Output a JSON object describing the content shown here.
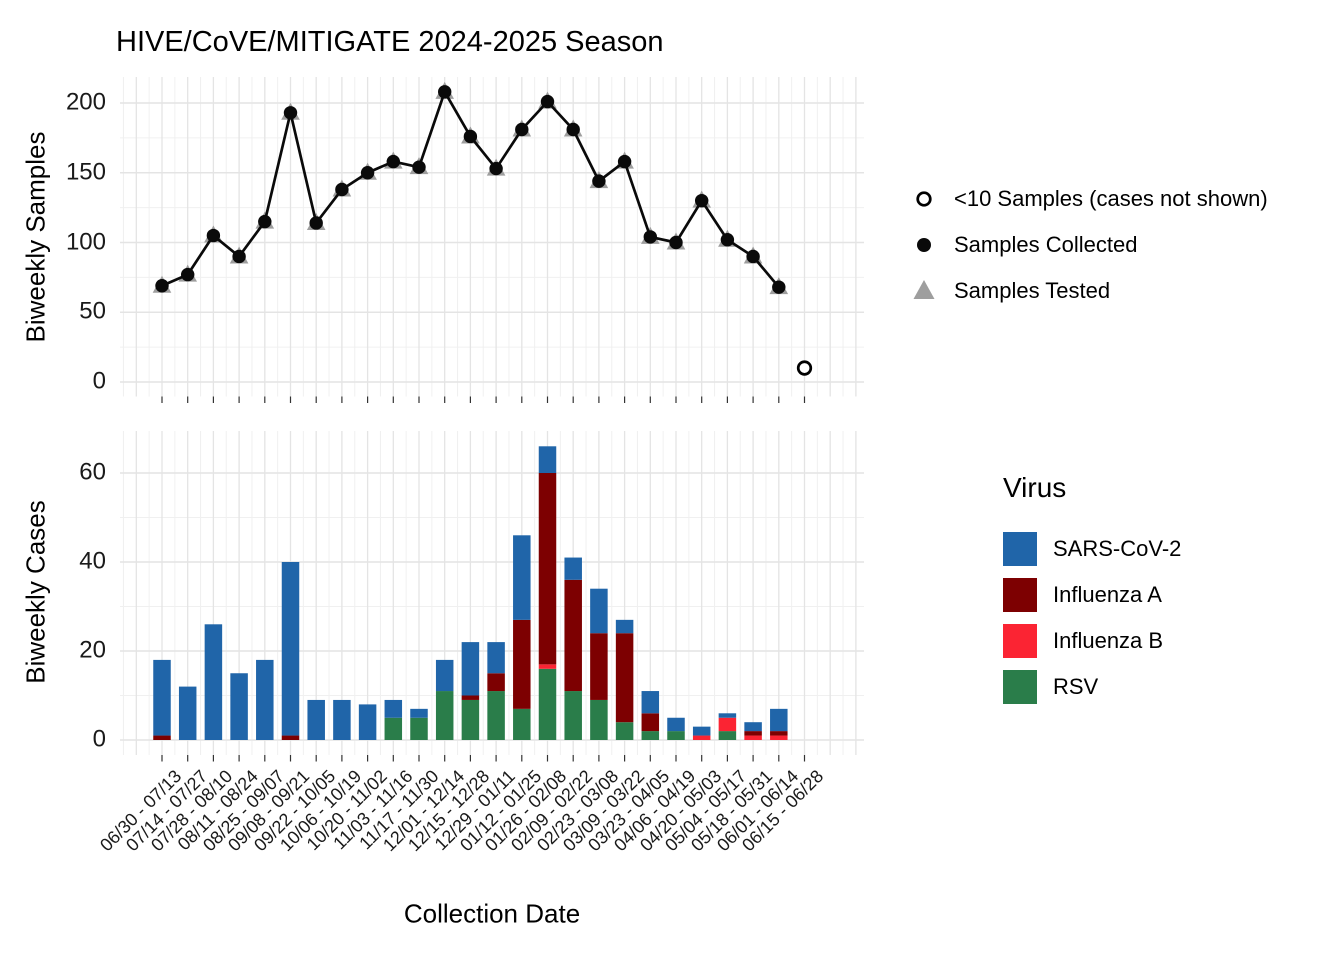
{
  "title": "HIVE/CoVE/MITIGATE 2024-2025 Season",
  "x_axis_label": "Collection Date",
  "top_chart": {
    "y_axis_label": "Biweekly Samples",
    "y_ticks": [
      0,
      50,
      100,
      150,
      200
    ],
    "legend": [
      {
        "marker": "open-circle",
        "label": "<10 Samples (cases not shown)"
      },
      {
        "marker": "filled-circle",
        "label": "Samples Collected"
      },
      {
        "marker": "gray-triangle",
        "label": "Samples Tested"
      }
    ]
  },
  "bottom_chart": {
    "y_axis_label": "Biweekly Cases",
    "y_ticks": [
      0,
      20,
      40,
      60
    ],
    "legend_title": "Virus",
    "legend": [
      {
        "label": "SARS-CoV-2",
        "color": "#2065A9"
      },
      {
        "label": "Influenza A",
        "color": "#7D0001"
      },
      {
        "label": "Influenza B",
        "color": "#FB2433"
      },
      {
        "label": "RSV",
        "color": "#2A7D4A"
      }
    ]
  },
  "colors": {
    "line_and_points": "#0A0A0A",
    "tested_triangle": "#9E9E9E",
    "grid_major": "#E4E4E4",
    "grid_minor": "#F0F0F0",
    "axis_tick": "#333333"
  },
  "chart_data": [
    {
      "type": "line",
      "title": "HIVE/CoVE/MITIGATE 2024-2025 Season",
      "ylabel": "Biweekly Samples",
      "ylim": [
        0,
        218
      ],
      "yticks": [
        0,
        50,
        100,
        150,
        200
      ],
      "grid": true,
      "legend_position": "right",
      "categories": [
        "06/30 - 07/13",
        "07/14 - 07/27",
        "07/28 - 08/10",
        "08/11 - 08/24",
        "08/25 - 09/07",
        "09/08 - 09/21",
        "09/22 - 10/05",
        "10/06 - 10/19",
        "10/20 - 11/02",
        "11/03 - 11/16",
        "11/17 - 11/30",
        "12/01 - 12/14",
        "12/15 - 12/28",
        "12/29 - 01/11",
        "01/12 - 01/25",
        "01/26 - 02/08",
        "02/09 - 02/22",
        "02/23 - 03/08",
        "03/09 - 03/22",
        "03/23 - 04/05",
        "04/06 - 04/19",
        "04/20 - 05/03",
        "05/04 - 05/17",
        "05/18 - 05/31",
        "06/01 - 06/14",
        "06/15 - 06/28"
      ],
      "series": [
        {
          "name": "Samples Collected",
          "marker": "filled-circle",
          "color": "#0A0A0A",
          "values": [
            69,
            77,
            105,
            90,
            115,
            193,
            114,
            138,
            150,
            158,
            154,
            208,
            176,
            153,
            181,
            201,
            181,
            144,
            158,
            104,
            100,
            130,
            102,
            90,
            68,
            null
          ]
        },
        {
          "name": "Samples Tested",
          "marker": "gray-triangle",
          "color": "#9E9E9E",
          "values": [
            69,
            77,
            105,
            90,
            115,
            193,
            114,
            138,
            150,
            158,
            154,
            208,
            176,
            153,
            181,
            201,
            181,
            144,
            158,
            104,
            100,
            130,
            102,
            90,
            68,
            null
          ]
        }
      ],
      "special_points": [
        {
          "category": "06/15 - 06/28",
          "value": 10,
          "marker": "open-circle",
          "label": "<10 Samples (cases not shown)"
        }
      ]
    },
    {
      "type": "bar",
      "stacked": true,
      "ylabel": "Biweekly Cases",
      "xlabel": "Collection Date",
      "ylim": [
        0,
        69
      ],
      "yticks": [
        0,
        20,
        40,
        60
      ],
      "grid": true,
      "legend_title": "Virus",
      "categories": [
        "06/30 - 07/13",
        "07/14 - 07/27",
        "07/28 - 08/10",
        "08/11 - 08/24",
        "08/25 - 09/07",
        "09/08 - 09/21",
        "09/22 - 10/05",
        "10/06 - 10/19",
        "10/20 - 11/02",
        "11/03 - 11/16",
        "11/17 - 11/30",
        "12/01 - 12/14",
        "12/15 - 12/28",
        "12/29 - 01/11",
        "01/12 - 01/25",
        "01/26 - 02/08",
        "02/09 - 02/22",
        "02/23 - 03/08",
        "03/09 - 03/22",
        "03/23 - 04/05",
        "04/06 - 04/19",
        "04/20 - 05/03",
        "05/04 - 05/17",
        "05/18 - 05/31",
        "06/01 - 06/14",
        "06/15 - 06/28"
      ],
      "stack_order_bottom_to_top": [
        "RSV",
        "Influenza B",
        "Influenza A",
        "SARS-CoV-2"
      ],
      "series": [
        {
          "name": "SARS-CoV-2",
          "color": "#2065A9",
          "values": [
            17,
            12,
            26,
            15,
            18,
            39,
            9,
            9,
            8,
            4,
            2,
            7,
            12,
            7,
            19,
            6,
            5,
            10,
            3,
            5,
            3,
            2,
            1,
            2,
            5,
            0
          ]
        },
        {
          "name": "Influenza A",
          "color": "#7D0001",
          "values": [
            1,
            0,
            0,
            0,
            0,
            1,
            0,
            0,
            0,
            0,
            0,
            0,
            1,
            4,
            20,
            43,
            25,
            15,
            20,
            4,
            0,
            0,
            0,
            1,
            1,
            0
          ]
        },
        {
          "name": "Influenza B",
          "color": "#FB2433",
          "values": [
            0,
            0,
            0,
            0,
            0,
            0,
            0,
            0,
            0,
            0,
            0,
            0,
            0,
            0,
            0,
            1,
            0,
            0,
            0,
            0,
            0,
            1,
            3,
            1,
            1,
            0
          ]
        },
        {
          "name": "RSV",
          "color": "#2A7D4A",
          "values": [
            0,
            0,
            0,
            0,
            0,
            0,
            0,
            0,
            0,
            5,
            5,
            11,
            9,
            11,
            7,
            16,
            11,
            9,
            4,
            2,
            2,
            0,
            2,
            0,
            0,
            0
          ]
        }
      ]
    }
  ]
}
